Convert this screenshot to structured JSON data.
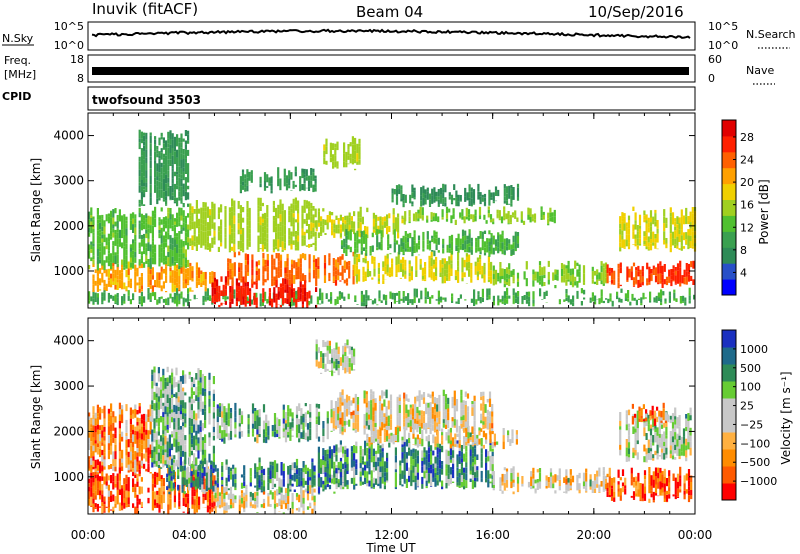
{
  "header": {
    "station": "Inuvik (fitACF)",
    "beam": "Beam 04",
    "date": "10/Sep/2016"
  },
  "noise_panel": {
    "left_label": "N.Sky",
    "right_label": "N.Search",
    "left_ticks": [
      "10^5",
      "10^0"
    ],
    "right_ticks": [
      "10^5",
      "10^0"
    ]
  },
  "freq_panel": {
    "left_label_line1": "Freq.",
    "left_label_line2": "[MHz]",
    "left_ticks": [
      "18",
      "8"
    ],
    "right_label": "Nave",
    "right_ticks": [
      "60",
      "0"
    ]
  },
  "cpid_panel": {
    "label": "CPID",
    "program": "twofsound 3503"
  },
  "colors": {
    "power_scale": [
      "#0000ff",
      "#2850c8",
      "#2e8b57",
      "#3aa050",
      "#50c030",
      "#a0d020",
      "#f0d000",
      "#ffa000",
      "#ff6000",
      "#ff2000",
      "#e00000"
    ],
    "velocity_scale": [
      "#ff0000",
      "#ff5a00",
      "#ff8c00",
      "#ffb040",
      "#c8c8c8",
      "#c8c8c8",
      "#66cc33",
      "#2e8b57",
      "#1e6a8a",
      "#1a30c0"
    ]
  },
  "chart_data": [
    {
      "type": "heatmap",
      "name": "power",
      "ylabel": "Slant Range [km]",
      "xlabel": "",
      "yticks": [
        1000,
        2000,
        3000,
        4000
      ],
      "ylim": [
        180,
        4500
      ],
      "xlim": [
        0,
        24
      ],
      "xticks": [
        0,
        4,
        8,
        12,
        16,
        20,
        24
      ],
      "colorbar": {
        "label": "Power [dB]",
        "ticks": [
          "4",
          "8",
          "12",
          "16",
          "20",
          "24",
          "28"
        ],
        "range": [
          0,
          31
        ]
      },
      "regions": [
        {
          "t0": 0.0,
          "t1": 24.0,
          "r0": 300,
          "r1": 500,
          "level": 10
        },
        {
          "t0": 0.0,
          "t1": 5.0,
          "r0": 600,
          "r1": 1100,
          "level": 22
        },
        {
          "t0": 4.8,
          "t1": 9.0,
          "r0": 250,
          "r1": 750,
          "level": 29
        },
        {
          "t0": 5.5,
          "t1": 10.5,
          "r0": 750,
          "r1": 1300,
          "level": 25
        },
        {
          "t0": 10.5,
          "t1": 16.0,
          "r0": 800,
          "r1": 1300,
          "level": 18
        },
        {
          "t0": 16.0,
          "t1": 20.5,
          "r0": 700,
          "r1": 1100,
          "level": 14
        },
        {
          "t0": 20.5,
          "t1": 24.0,
          "r0": 700,
          "r1": 1100,
          "level": 27
        },
        {
          "t0": 0.0,
          "t1": 4.0,
          "r0": 1100,
          "r1": 2300,
          "level": 12
        },
        {
          "t0": 4.0,
          "t1": 9.0,
          "r0": 1500,
          "r1": 2500,
          "level": 16
        },
        {
          "t0": 9.0,
          "t1": 12.5,
          "r0": 1800,
          "r1": 2300,
          "level": 17
        },
        {
          "t0": 10.0,
          "t1": 17.0,
          "r0": 1400,
          "r1": 1800,
          "level": 11
        },
        {
          "t0": 12.5,
          "t1": 18.5,
          "r0": 2100,
          "r1": 2300,
          "level": 14
        },
        {
          "t0": 21.0,
          "t1": 24.0,
          "r0": 1500,
          "r1": 2300,
          "level": 18
        },
        {
          "t0": 9.3,
          "t1": 10.7,
          "r0": 3300,
          "r1": 3900,
          "level": 16
        },
        {
          "t0": 2.0,
          "t1": 4.0,
          "r0": 2500,
          "r1": 4000,
          "level": 8
        },
        {
          "t0": 6.0,
          "t1": 9.0,
          "r0": 2800,
          "r1": 3200,
          "level": 8
        },
        {
          "t0": 12.0,
          "t1": 17.0,
          "r0": 2500,
          "r1": 2800,
          "level": 7
        }
      ]
    },
    {
      "type": "heatmap",
      "name": "velocity",
      "ylabel": "Slant Range [km]",
      "xlabel": "Time UT",
      "yticks": [
        1000,
        2000,
        3000,
        4000
      ],
      "ylim": [
        180,
        4500
      ],
      "xlim": [
        0,
        24
      ],
      "xticks": [
        0,
        4,
        8,
        12,
        16,
        20,
        24
      ],
      "xticklabels": [
        "00:00",
        "04:00",
        "08:00",
        "12:00",
        "16:00",
        "20:00",
        "00:00"
      ],
      "colorbar": {
        "label": "Velocity [m s⁻¹]",
        "ticks": [
          "1000",
          "500",
          "100",
          "25",
          "−25",
          "−100",
          "−500",
          "−1000"
        ]
      },
      "regions": [
        {
          "t0": 0.0,
          "t1": 5.0,
          "r0": 250,
          "r1": 1100,
          "level": 1
        },
        {
          "t0": 3.0,
          "t1": 10.5,
          "r0": 700,
          "r1": 1300,
          "level": 7
        },
        {
          "t0": 5.0,
          "t1": 9.0,
          "r0": 250,
          "r1": 700,
          "level": 4
        },
        {
          "t0": 9.0,
          "t1": 16.0,
          "r0": 800,
          "r1": 1700,
          "level": 7
        },
        {
          "t0": 16.0,
          "t1": 20.5,
          "r0": 700,
          "r1": 1100,
          "level": 4
        },
        {
          "t0": 20.5,
          "t1": 24.0,
          "r0": 500,
          "r1": 1100,
          "level": 1
        },
        {
          "t0": 0.0,
          "t1": 2.5,
          "r0": 1100,
          "r1": 2500,
          "level": 2
        },
        {
          "t0": 2.5,
          "t1": 5.0,
          "r0": 1200,
          "r1": 3300,
          "level": 6
        },
        {
          "t0": 5.0,
          "t1": 9.5,
          "r0": 1800,
          "r1": 2500,
          "level": 6
        },
        {
          "t0": 9.5,
          "t1": 16.0,
          "r0": 2000,
          "r1": 2800,
          "level": 4
        },
        {
          "t0": 11.0,
          "t1": 17.0,
          "r0": 1700,
          "r1": 2000,
          "level": 4
        },
        {
          "t0": 21.0,
          "t1": 24.0,
          "r0": 1400,
          "r1": 2400,
          "level": 5
        },
        {
          "t0": 21.5,
          "t1": 23.0,
          "r0": 2200,
          "r1": 2500,
          "level": 2
        },
        {
          "t0": 9.0,
          "t1": 10.5,
          "r0": 3300,
          "r1": 3900,
          "level": 5
        }
      ]
    }
  ]
}
